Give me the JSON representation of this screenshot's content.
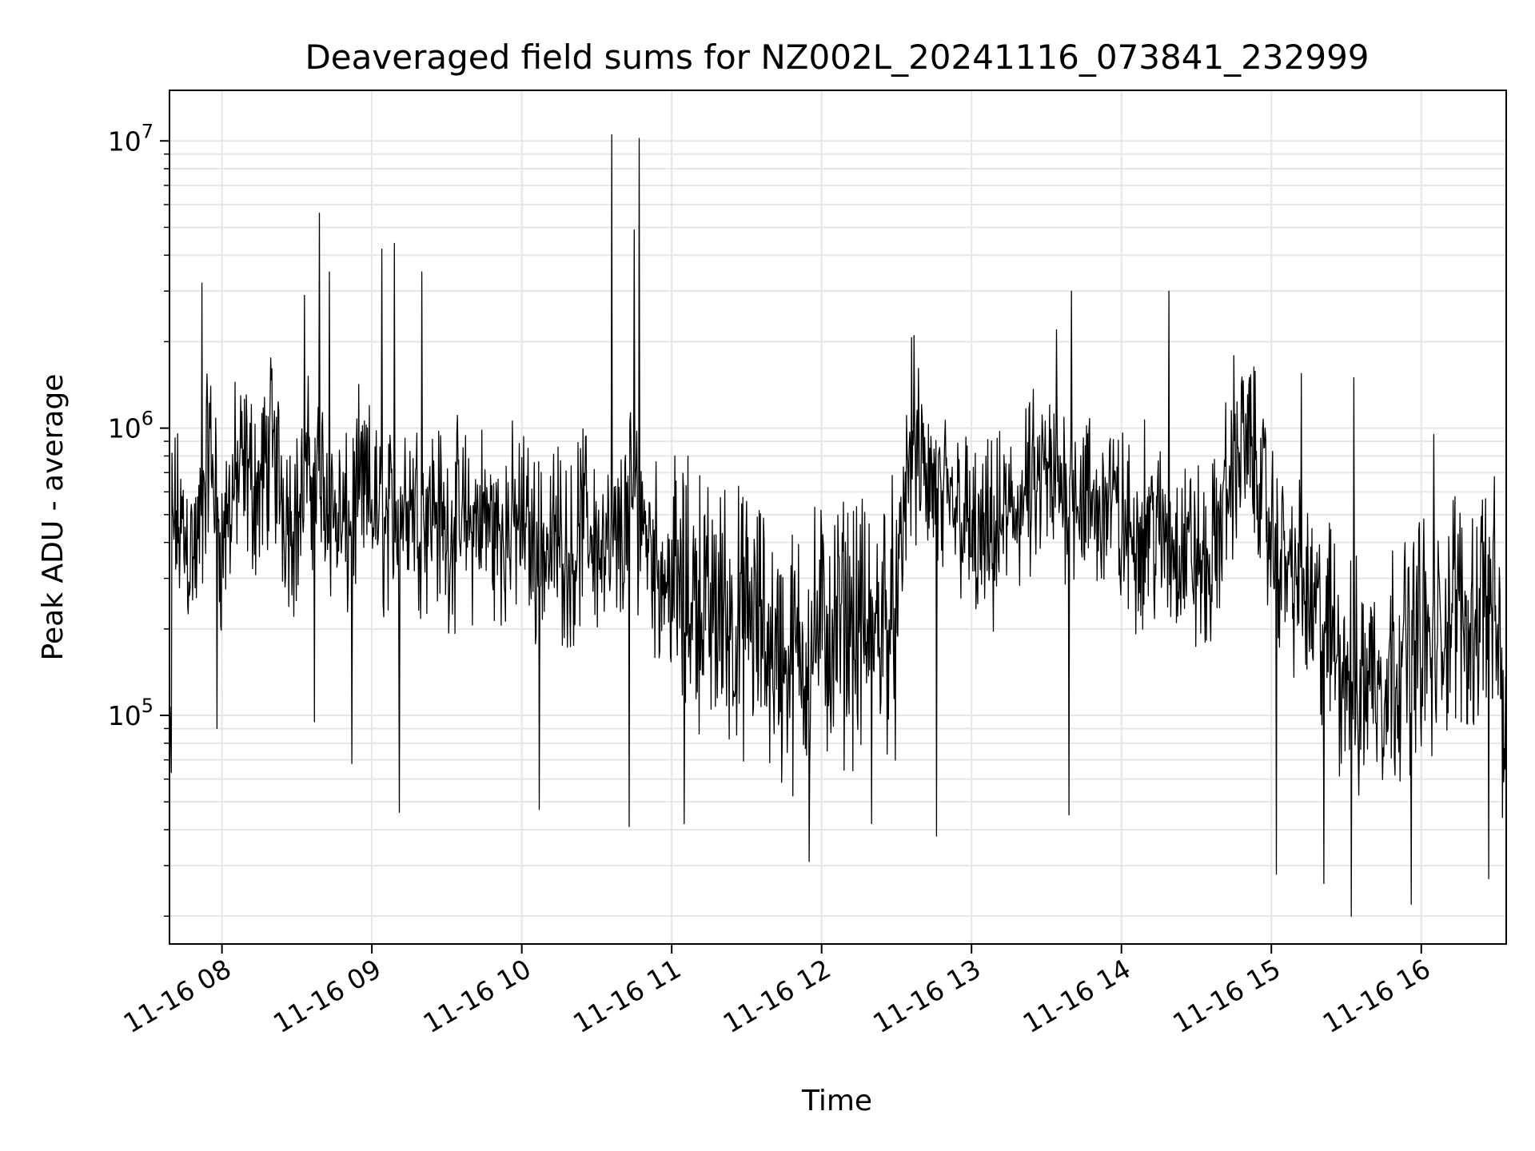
{
  "chart_data": {
    "type": "line",
    "title": "Deaveraged field sums for NZ002L_20241116_073841_232999",
    "xlabel": "Time",
    "ylabel": "Peak ADU - average",
    "x_range": [
      "11-16 07:39",
      "11-16 16:34"
    ],
    "y_scale": "log",
    "ylim": [
      16000,
      15000000
    ],
    "grid": true,
    "line_color": "#000000",
    "x_ticks": [
      "11-16 08",
      "11-16 09",
      "11-16 10",
      "11-16 11",
      "11-16 12",
      "11-16 13",
      "11-16 14",
      "11-16 15",
      "11-16 16"
    ],
    "y_ticks": [
      {
        "value": 100000,
        "base": "10",
        "exp": "5"
      },
      {
        "value": 1000000,
        "base": "10",
        "exp": "6"
      },
      {
        "value": 10000000,
        "base": "10",
        "exp": "7"
      }
    ],
    "series": [
      {
        "x": [
          "07:40",
          "07:45",
          "07:50",
          "07:55",
          "08:00",
          "08:05",
          "08:10",
          "08:15",
          "08:20",
          "08:25",
          "08:30",
          "08:35",
          "08:40",
          "08:45",
          "08:50",
          "08:55",
          "09:00",
          "09:05",
          "09:10",
          "09:15",
          "09:20",
          "09:25",
          "09:30",
          "09:35",
          "09:40",
          "09:45",
          "09:50",
          "09:55",
          "10:00",
          "10:05",
          "10:10",
          "10:15",
          "10:20",
          "10:25",
          "10:30",
          "10:35",
          "10:40",
          "10:45",
          "10:50",
          "10:55",
          "11:00",
          "11:05",
          "11:10",
          "11:15",
          "11:20",
          "11:25",
          "11:30",
          "11:35",
          "11:40",
          "11:45",
          "11:50",
          "11:55",
          "12:00",
          "12:05",
          "12:10",
          "12:15",
          "12:20",
          "12:25",
          "12:30",
          "12:35",
          "12:40",
          "12:45",
          "12:50",
          "12:55",
          "13:00",
          "13:05",
          "13:10",
          "13:15",
          "13:20",
          "13:25",
          "13:30",
          "13:35",
          "13:40",
          "13:45",
          "13:50",
          "13:55",
          "14:00",
          "14:05",
          "14:10",
          "14:15",
          "14:20",
          "14:25",
          "14:30",
          "14:35",
          "14:40",
          "14:45",
          "14:50",
          "14:55",
          "15:00",
          "15:05",
          "15:10",
          "15:15",
          "15:20",
          "15:25",
          "15:30",
          "15:35",
          "15:40",
          "15:45",
          "15:50",
          "15:55",
          "16:00",
          "16:05",
          "16:10",
          "16:15",
          "16:20",
          "16:25",
          "16:30",
          "16:34"
        ],
        "y": [
          500000,
          420000,
          350000,
          900000,
          380000,
          650000,
          700000,
          600000,
          900000,
          550000,
          480000,
          700000,
          650000,
          500000,
          420000,
          600000,
          550000,
          450000,
          500000,
          600000,
          500000,
          550000,
          420000,
          480000,
          450000,
          500000,
          420000,
          450000,
          480000,
          400000,
          380000,
          420000,
          350000,
          500000,
          400000,
          350000,
          420000,
          600000,
          450000,
          320000,
          300000,
          250000,
          280000,
          220000,
          250000,
          200000,
          220000,
          200000,
          180000,
          150000,
          160000,
          180000,
          200000,
          180000,
          220000,
          200000,
          180000,
          250000,
          200000,
          900000,
          700000,
          600000,
          500000,
          550000,
          400000,
          380000,
          420000,
          500000,
          550000,
          600000,
          650000,
          600000,
          700000,
          550000,
          500000,
          600000,
          450000,
          400000,
          500000,
          420000,
          380000,
          400000,
          350000,
          300000,
          500000,
          800000,
          900000,
          700000,
          400000,
          350000,
          300000,
          250000,
          200000,
          180000,
          150000,
          120000,
          150000,
          130000,
          160000,
          180000,
          200000,
          150000,
          220000,
          250000,
          200000,
          300000,
          220000,
          60000
        ]
      }
    ],
    "peaks": [
      {
        "x": "07:52",
        "y": 3200000
      },
      {
        "x": "08:33",
        "y": 2900000
      },
      {
        "x": "08:39",
        "y": 5600000
      },
      {
        "x": "08:43",
        "y": 3500000
      },
      {
        "x": "09:04",
        "y": 4200000
      },
      {
        "x": "09:09",
        "y": 4400000
      },
      {
        "x": "09:20",
        "y": 3500000
      },
      {
        "x": "10:36",
        "y": 10500000
      },
      {
        "x": "10:47",
        "y": 10200000
      },
      {
        "x": "10:45",
        "y": 4900000
      },
      {
        "x": "12:37",
        "y": 2100000
      },
      {
        "x": "13:34",
        "y": 2200000
      },
      {
        "x": "13:40",
        "y": 3000000
      },
      {
        "x": "14:19",
        "y": 3000000
      },
      {
        "x": "15:12",
        "y": 1550000
      },
      {
        "x": "15:33",
        "y": 1500000
      },
      {
        "x": "16:05",
        "y": 950000
      }
    ],
    "dips": [
      {
        "x": "07:58",
        "y": 90000
      },
      {
        "x": "08:37",
        "y": 95000
      },
      {
        "x": "08:52",
        "y": 68000
      },
      {
        "x": "09:11",
        "y": 46000
      },
      {
        "x": "10:07",
        "y": 47000
      },
      {
        "x": "10:43",
        "y": 41000
      },
      {
        "x": "11:05",
        "y": 42000
      },
      {
        "x": "11:55",
        "y": 31000
      },
      {
        "x": "12:20",
        "y": 42000
      },
      {
        "x": "12:46",
        "y": 38000
      },
      {
        "x": "13:39",
        "y": 45000
      },
      {
        "x": "15:02",
        "y": 28000
      },
      {
        "x": "15:21",
        "y": 26000
      },
      {
        "x": "15:32",
        "y": 20000
      },
      {
        "x": "15:56",
        "y": 22000
      },
      {
        "x": "16:27",
        "y": 27000
      }
    ]
  }
}
